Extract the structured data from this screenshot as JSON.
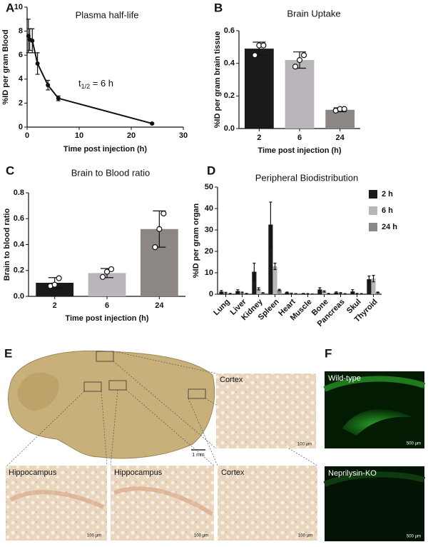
{
  "chart_data": [
    {
      "panel": "A",
      "type": "line",
      "title": "Plasma half-life",
      "xlabel": "Time post injection (h)",
      "ylabel": "%ID per gram Blood",
      "x": [
        0.25,
        0.5,
        1,
        2,
        4,
        6,
        24
      ],
      "values": [
        7.6,
        7.3,
        7.2,
        5.3,
        3.5,
        2.4,
        0.3
      ],
      "errors": [
        1.4,
        0.9,
        1.0,
        0.9,
        0.4,
        0.2,
        0.05
      ],
      "color": "#111111",
      "xlim": [
        0,
        30
      ],
      "xticks": [
        0,
        10,
        20,
        30
      ],
      "ylim": [
        0,
        10
      ],
      "yticks": [
        0,
        2,
        4,
        6,
        8,
        10
      ],
      "annotation": [
        "t",
        "1/2",
        " = 6 h"
      ]
    },
    {
      "panel": "B",
      "type": "bar",
      "title": "Brain Uptake",
      "xlabel": "Time post injection (h)",
      "ylabel": "%ID per gram brain tissue",
      "categories": [
        "2",
        "6",
        "24"
      ],
      "values": [
        0.49,
        0.42,
        0.115
      ],
      "errors": [
        0.04,
        0.05,
        0.012
      ],
      "points": [
        [
          0.45,
          0.51,
          0.51
        ],
        [
          0.38,
          0.42,
          0.45
        ],
        [
          0.11,
          0.12,
          0.12
        ]
      ],
      "colors": [
        "#1a1a1a",
        "#bab5ba",
        "#8c8784"
      ],
      "ylim": [
        0,
        0.6
      ],
      "yticks": [
        {
          "value": 0,
          "label": "0.0"
        },
        0.2,
        0.4,
        0.6
      ]
    },
    {
      "panel": "C",
      "type": "bar",
      "title": "Brain to Blood ratio",
      "xlabel": "Time post injection (h)",
      "ylabel": "Brain to blood ratio",
      "categories": [
        "2",
        "6",
        "24"
      ],
      "values": [
        0.105,
        0.18,
        0.52
      ],
      "errors": [
        0.04,
        0.035,
        0.14
      ],
      "points": [
        [
          0.08,
          0.09,
          0.14
        ],
        [
          0.15,
          0.19,
          0.21
        ],
        [
          0.38,
          0.52,
          0.64
        ]
      ],
      "colors": [
        "#1a1a1a",
        "#bab5ba",
        "#8c8784"
      ],
      "ylim": [
        0,
        0.8
      ],
      "yticks": [
        {
          "value": 0,
          "label": "0.0"
        },
        0.2,
        0.4,
        0.6,
        0.8
      ]
    },
    {
      "panel": "D",
      "type": "bar",
      "title": "Peripheral Biodistribution",
      "ylabel": "%ID per gram organ",
      "categories": [
        "Lung",
        "Liver",
        "Kidney",
        "Spleen",
        "Heart",
        "Muscle",
        "Bone",
        "Pancreas",
        "Skul",
        "Thyroid"
      ],
      "series": [
        {
          "name": "2 h",
          "color": "#1a1a1a",
          "values": [
            1.2,
            1.5,
            10.5,
            32.5,
            0.8,
            0.3,
            2.2,
            0.8,
            1.3,
            7
          ],
          "errors": [
            0.5,
            0.6,
            4,
            10.5,
            0.2,
            0.1,
            0.8,
            0.3,
            0.8,
            1.5
          ]
        },
        {
          "name": "6 h",
          "color": "#bab5ba",
          "values": [
            0.6,
            0.7,
            2.5,
            13,
            0.4,
            0.2,
            1.3,
            0.5,
            0.3,
            7.3
          ],
          "errors": [
            0.3,
            0.3,
            0.5,
            1.5,
            0.1,
            0.1,
            0.3,
            0.2,
            0.1,
            1.5
          ]
        },
        {
          "name": "24 h",
          "color": "#8c8784",
          "values": [
            0.3,
            0.3,
            0.6,
            2,
            0.2,
            0.1,
            0.3,
            0.2,
            0.2,
            0.8
          ],
          "errors": [
            0.1,
            0.1,
            0.1,
            0.3,
            0.1,
            0.05,
            0.1,
            0.1,
            0.1,
            0.2
          ]
        }
      ],
      "ylim": [
        0,
        50
      ],
      "yticks": [
        0,
        10,
        20,
        30,
        40,
        50
      ],
      "legend": "top-right"
    }
  ],
  "panels": {
    "E": {
      "letter": "E",
      "scale_bar": "1 mm",
      "insets": [
        {
          "label": "Cortex",
          "scale_bar": "100 µm"
        },
        {
          "label": "Hippocampus",
          "scale_bar": "100 µm"
        },
        {
          "label": "Hippocampus",
          "scale_bar": "100 µm"
        },
        {
          "label": "Cortex",
          "scale_bar": "100 µm"
        }
      ]
    },
    "F": {
      "letter": "F",
      "images": [
        {
          "label": "Wild-type",
          "scale_bar": "500 µm"
        },
        {
          "label": "Neprilysin-KO",
          "scale_bar": "500 µm"
        }
      ]
    }
  }
}
